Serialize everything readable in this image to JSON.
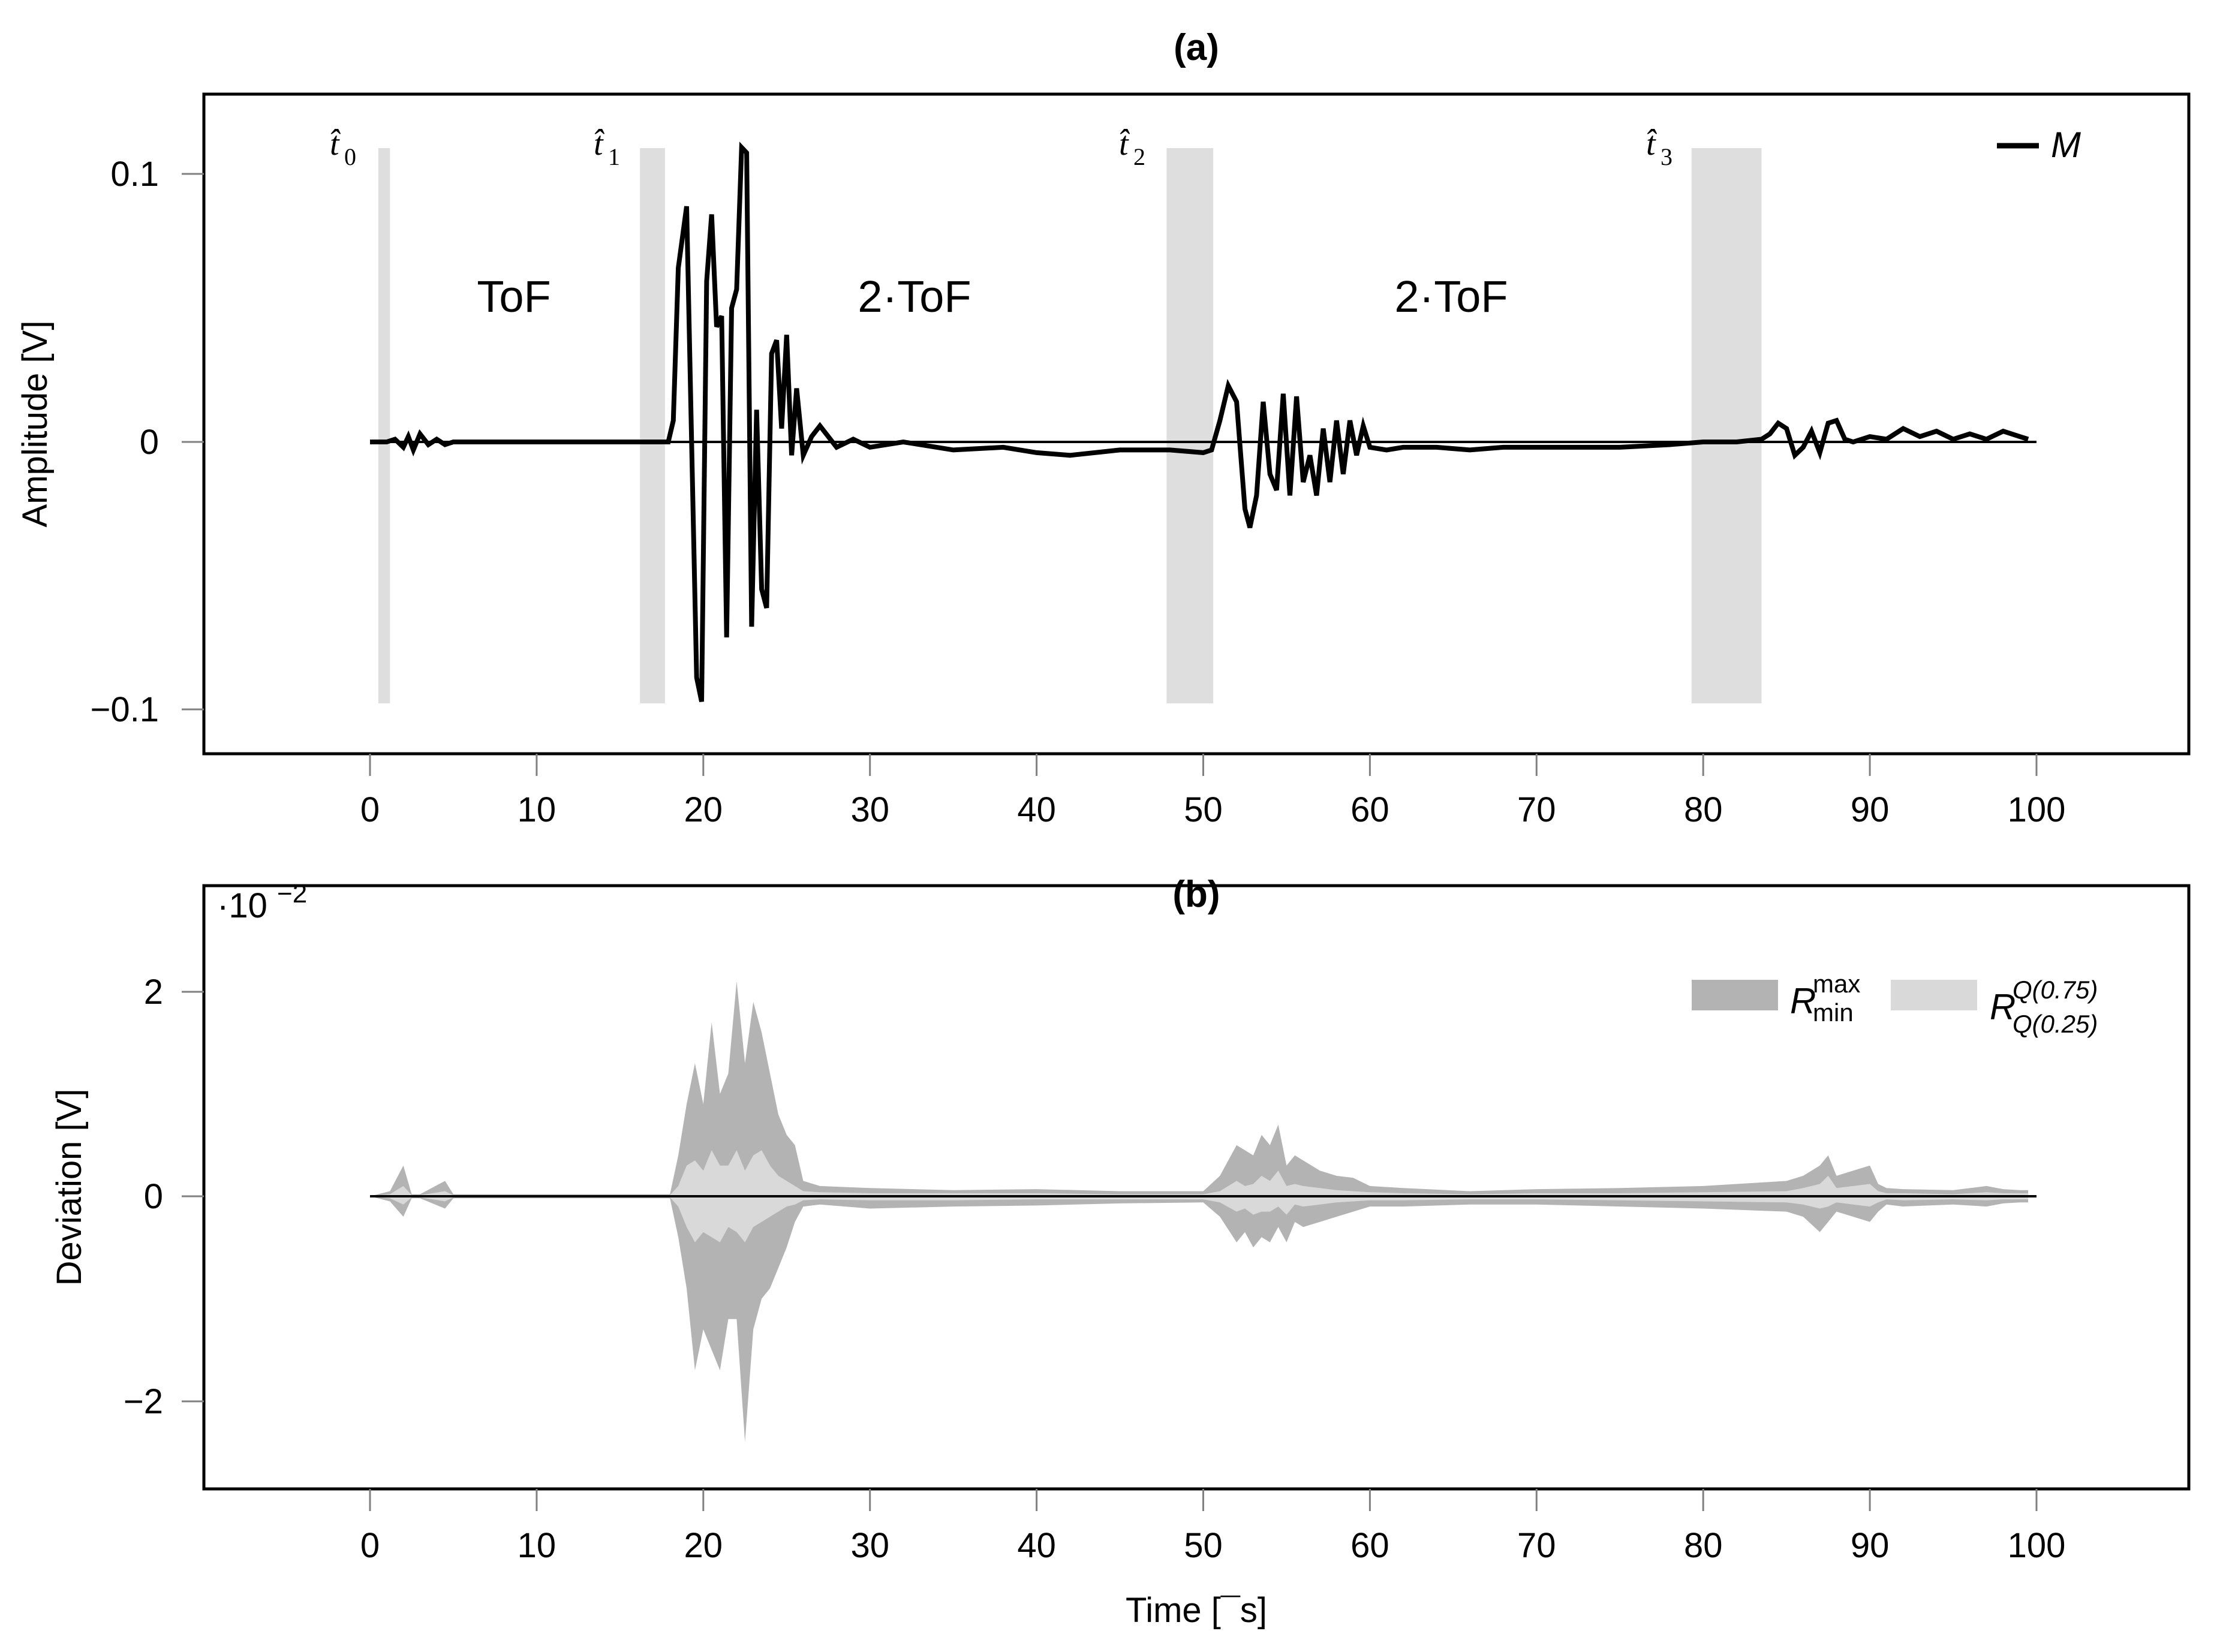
{
  "figure": {
    "panel_a": {
      "title": "(a)",
      "ylabel": "Amplitude [V]",
      "yticks": [
        "0.1",
        "0",
        "−0.1"
      ],
      "xticks": [
        "0",
        "10",
        "20",
        "30",
        "40",
        "50",
        "60",
        "70",
        "80",
        "90",
        "100"
      ],
      "legend": {
        "label": "M"
      },
      "markers": [
        {
          "label": "t̂",
          "sub": "0"
        },
        {
          "label": "t̂",
          "sub": "1"
        },
        {
          "label": "t̂",
          "sub": "2"
        },
        {
          "label": "t̂",
          "sub": "3"
        }
      ],
      "regions": [
        "ToF",
        "2·ToF",
        "2·ToF"
      ]
    },
    "panel_b": {
      "title": "(b)",
      "ylabel": "Deviation [V]",
      "scale": "·10",
      "scale_exp": "−2",
      "yticks": [
        "2",
        "0",
        "−2"
      ],
      "xticks": [
        "0",
        "10",
        "20",
        "30",
        "40",
        "50",
        "60",
        "70",
        "80",
        "90",
        "100"
      ],
      "xlabel": "Time [¯s]",
      "legend": [
        {
          "R": "R",
          "sup": "max",
          "sub": "min",
          "color": "#b3b3b3"
        },
        {
          "R": "R",
          "sup": "Q(0.75)",
          "sub": "Q(0.25)",
          "color": "#d9d9d9"
        }
      ]
    },
    "colors": {
      "line": "#000000",
      "marker_band": "#dedede",
      "range_minmax": "#b3b3b3",
      "range_quartile": "#d9d9d9",
      "tick": "#808080"
    }
  },
  "chart_data": [
    {
      "type": "line",
      "title": "(a)",
      "xlabel": "",
      "ylabel": "Amplitude [V]",
      "xlim": [
        -10,
        110
      ],
      "ylim": [
        -0.115,
        0.13
      ],
      "grid": false,
      "legend_position": "top-right",
      "series": [
        {
          "name": "M",
          "x": [
            0,
            1,
            1.5,
            2,
            2.3,
            2.6,
            3,
            3.5,
            4,
            4.5,
            5,
            6,
            10,
            15,
            17,
            17.9,
            18.2,
            18.5,
            19,
            19.3,
            19.6,
            19.9,
            20.2,
            20.5,
            20.8,
            21.1,
            21.4,
            21.7,
            22,
            22.3,
            22.6,
            22.9,
            23.2,
            23.5,
            23.8,
            24.1,
            24.4,
            24.7,
            25,
            25.3,
            25.6,
            26,
            26.5,
            27,
            28,
            29,
            30,
            32,
            35,
            38,
            40,
            42,
            45,
            48,
            50,
            50.5,
            51,
            51.5,
            52,
            52.5,
            52.8,
            53.2,
            53.6,
            54,
            54.4,
            54.8,
            55.2,
            55.6,
            56,
            56.4,
            56.8,
            57.2,
            57.6,
            58,
            58.4,
            58.8,
            59.2,
            59.6,
            60,
            61,
            62,
            64,
            66,
            68,
            70,
            72,
            75,
            78,
            80,
            82,
            83.5,
            84,
            84.5,
            85,
            85.5,
            86,
            86.5,
            87,
            87.5,
            88,
            88.5,
            89,
            90,
            91,
            92,
            93,
            94,
            95,
            96,
            97,
            98,
            99,
            99.5
          ],
          "y": [
            0,
            0,
            0.001,
            -0.002,
            0.002,
            -0.003,
            0.003,
            -0.001,
            0.001,
            -0.001,
            0.0,
            0,
            0,
            0,
            0,
            0,
            0.008,
            0.065,
            0.088,
            0.0,
            -0.088,
            -0.097,
            0.06,
            0.085,
            0.043,
            0.047,
            -0.073,
            0.05,
            0.057,
            0.11,
            0.108,
            -0.069,
            0.012,
            -0.055,
            -0.062,
            0.033,
            0.038,
            0.005,
            0.04,
            -0.005,
            0.02,
            -0.005,
            0.002,
            0.006,
            -0.002,
            0.001,
            -0.002,
            0.0,
            -0.003,
            -0.002,
            -0.004,
            -0.005,
            -0.003,
            -0.003,
            -0.004,
            -0.003,
            0.008,
            0.021,
            0.015,
            -0.025,
            -0.032,
            -0.02,
            0.015,
            -0.012,
            -0.018,
            0.018,
            -0.02,
            0.017,
            -0.015,
            -0.005,
            -0.02,
            0.005,
            -0.015,
            0.008,
            -0.012,
            0.008,
            -0.005,
            0.006,
            -0.002,
            -0.003,
            -0.002,
            -0.002,
            -0.003,
            -0.002,
            -0.002,
            -0.002,
            -0.002,
            -0.001,
            0.0,
            0.0,
            0.001,
            0.003,
            0.007,
            0.005,
            -0.005,
            -0.002,
            0.004,
            -0.004,
            0.007,
            0.008,
            0.001,
            0.0,
            0.002,
            0.001,
            0.005,
            0.002,
            0.004,
            0.001,
            0.003,
            0.001,
            0.004,
            0.002,
            0.001
          ]
        }
      ],
      "marker_bands": [
        {
          "label": "t0",
          "x0": 0.5,
          "x1": 1.2
        },
        {
          "label": "t1",
          "x0": 16.2,
          "x1": 17.7
        },
        {
          "label": "t2",
          "x0": 47.8,
          "x1": 50.6
        },
        {
          "label": "t3",
          "x0": 79.3,
          "x1": 83.5
        }
      ],
      "annotations": [
        {
          "text": "ToF",
          "x": 8.5,
          "y": 0.055
        },
        {
          "text": "2·ToF",
          "x": 32.5,
          "y": 0.055
        },
        {
          "text": "2·ToF",
          "x": 64.5,
          "y": 0.055
        }
      ]
    },
    {
      "type": "area",
      "title": "(b)",
      "xlabel": "Time [¯s]",
      "ylabel": "Deviation [V]",
      "y_scale_note": "·10^-2",
      "xlim": [
        -10,
        110
      ],
      "ylim": [
        -2.9,
        2.6
      ],
      "grid": false,
      "legend_position": "top-right",
      "x": [
        0,
        1.2,
        2,
        2.5,
        3,
        4.5,
        5,
        18,
        18.5,
        19,
        19.5,
        20,
        20.5,
        21,
        21.5,
        22,
        22.5,
        23,
        23.5,
        24,
        24.5,
        25,
        25.5,
        26,
        27,
        30,
        35,
        40,
        45,
        50,
        51,
        52,
        52.5,
        53,
        53.5,
        54,
        54.5,
        55,
        55.5,
        56,
        57,
        58,
        59,
        60,
        62,
        66,
        70,
        75,
        80,
        85,
        86,
        87,
        87.5,
        88,
        89,
        90,
        90.5,
        91,
        92,
        95,
        97,
        98,
        99,
        99.5
      ],
      "series": [
        {
          "name": "R_min^max upper",
          "values": [
            0,
            0.05,
            0.3,
            0.02,
            0.02,
            0.15,
            0.02,
            0.02,
            0.4,
            0.9,
            1.3,
            0.9,
            1.7,
            1.0,
            1.2,
            2.1,
            1.3,
            1.9,
            1.6,
            1.2,
            0.8,
            0.6,
            0.5,
            0.15,
            0.1,
            0.08,
            0.06,
            0.07,
            0.05,
            0.05,
            0.2,
            0.5,
            0.45,
            0.4,
            0.6,
            0.5,
            0.7,
            0.3,
            0.4,
            0.35,
            0.25,
            0.2,
            0.18,
            0.1,
            0.08,
            0.05,
            0.07,
            0.08,
            0.1,
            0.15,
            0.2,
            0.3,
            0.4,
            0.2,
            0.25,
            0.3,
            0.12,
            0.08,
            0.07,
            0.06,
            0.1,
            0.07,
            0.06,
            0.06
          ]
        },
        {
          "name": "R_min^max lower",
          "values": [
            0,
            -0.05,
            -0.2,
            -0.02,
            -0.02,
            -0.12,
            -0.02,
            -0.02,
            -0.4,
            -0.9,
            -1.7,
            -1.3,
            -1.5,
            -1.7,
            -1.2,
            -1.2,
            -2.4,
            -1.3,
            -1.0,
            -0.9,
            -0.7,
            -0.5,
            -0.25,
            -0.1,
            -0.08,
            -0.12,
            -0.1,
            -0.09,
            -0.07,
            -0.06,
            -0.2,
            -0.45,
            -0.35,
            -0.5,
            -0.4,
            -0.45,
            -0.3,
            -0.45,
            -0.25,
            -0.3,
            -0.25,
            -0.2,
            -0.15,
            -0.1,
            -0.1,
            -0.08,
            -0.08,
            -0.1,
            -0.12,
            -0.15,
            -0.2,
            -0.35,
            -0.25,
            -0.15,
            -0.2,
            -0.25,
            -0.15,
            -0.08,
            -0.1,
            -0.08,
            -0.1,
            -0.07,
            -0.06,
            -0.06
          ]
        },
        {
          "name": "R_Q(0.25)^Q(0.75) upper",
          "values": [
            0,
            0.02,
            0.1,
            0.01,
            0.01,
            0.05,
            0.01,
            0.01,
            0.1,
            0.3,
            0.35,
            0.25,
            0.45,
            0.3,
            0.3,
            0.45,
            0.25,
            0.4,
            0.45,
            0.3,
            0.2,
            0.15,
            0.1,
            0.05,
            0.04,
            0.03,
            0.03,
            0.03,
            0.02,
            0.02,
            0.05,
            0.15,
            0.1,
            0.12,
            0.2,
            0.15,
            0.25,
            0.1,
            0.12,
            0.1,
            0.08,
            0.06,
            0.05,
            0.04,
            0.03,
            0.02,
            0.03,
            0.03,
            0.04,
            0.05,
            0.08,
            0.12,
            0.2,
            0.08,
            0.1,
            0.12,
            0.05,
            0.03,
            0.03,
            0.02,
            0.04,
            0.03,
            0.03,
            0.03
          ]
        },
        {
          "name": "R_Q(0.25)^Q(0.75) lower",
          "values": [
            0,
            -0.02,
            -0.08,
            -0.01,
            -0.01,
            -0.05,
            -0.01,
            -0.01,
            -0.1,
            -0.3,
            -0.45,
            -0.35,
            -0.4,
            -0.45,
            -0.3,
            -0.35,
            -0.45,
            -0.3,
            -0.25,
            -0.2,
            -0.15,
            -0.1,
            -0.08,
            -0.04,
            -0.03,
            -0.04,
            -0.04,
            -0.03,
            -0.03,
            -0.03,
            -0.06,
            -0.15,
            -0.12,
            -0.18,
            -0.15,
            -0.15,
            -0.1,
            -0.18,
            -0.08,
            -0.1,
            -0.08,
            -0.06,
            -0.05,
            -0.04,
            -0.04,
            -0.03,
            -0.03,
            -0.04,
            -0.05,
            -0.06,
            -0.08,
            -0.12,
            -0.1,
            -0.06,
            -0.08,
            -0.1,
            -0.06,
            -0.03,
            -0.04,
            -0.03,
            -0.04,
            -0.03,
            -0.03,
            -0.03
          ]
        }
      ]
    }
  ]
}
